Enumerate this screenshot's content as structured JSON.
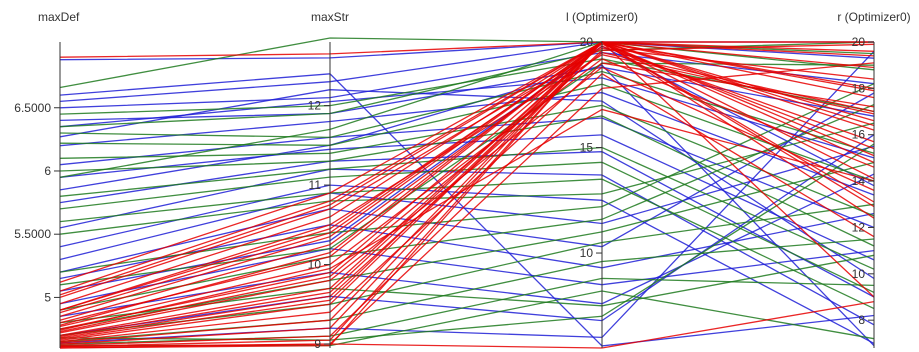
{
  "chart_data": {
    "type": "parallel-coordinates",
    "colors": {
      "blue": "#1f1fd6",
      "green": "#1f7a1f",
      "red": "#e60000"
    },
    "axes": [
      {
        "name": "maxDef",
        "range": [
          4.6,
          7.02
        ],
        "ticks": [
          5,
          5.5,
          6,
          6.5
        ],
        "tick_labels": [
          "5",
          "5.5000",
          "6",
          "6.5000"
        ]
      },
      {
        "name": "maxStr",
        "range": [
          8.95,
          12.8
        ],
        "ticks": [
          9,
          10,
          11,
          12
        ],
        "tick_labels": [
          "9",
          "10",
          "11",
          "12"
        ]
      },
      {
        "name": "l (Optimizer0)",
        "range": [
          5.5,
          20
        ],
        "ticks": [
          10,
          15,
          20
        ],
        "tick_labels": [
          "10",
          "15",
          "20"
        ]
      },
      {
        "name": "r (Optimizer0)",
        "range": [
          6.8,
          20
        ],
        "ticks": [
          8,
          10,
          12,
          14,
          16,
          18,
          20
        ],
        "tick_labels": [
          "8",
          "10",
          "12",
          "14",
          "16",
          "18",
          "20"
        ]
      }
    ],
    "series": [
      {
        "color": "green",
        "values": [
          [
            6.66,
            12.85,
            20,
            19.5
          ],
          [
            6.45,
            12.0,
            19.2,
            17.0
          ],
          [
            6.3,
            11.6,
            18.6,
            15.2
          ],
          [
            6.22,
            11.5,
            18.0,
            14.0
          ],
          [
            6.1,
            11.4,
            17.0,
            12.5
          ],
          [
            6.0,
            11.3,
            16.5,
            11.2
          ],
          [
            5.8,
            11.2,
            15.0,
            10.2
          ],
          [
            5.7,
            11.1,
            14.3,
            9.2
          ],
          [
            5.6,
            10.9,
            13.5,
            8.5
          ],
          [
            5.5,
            10.8,
            12.8,
            16.5
          ],
          [
            5.2,
            10.4,
            12.2,
            18.2
          ],
          [
            4.9,
            10.1,
            11.6,
            17.3
          ],
          [
            4.75,
            9.8,
            11.0,
            14.8
          ],
          [
            4.7,
            9.5,
            10.5,
            13.0
          ],
          [
            4.65,
            9.3,
            9.6,
            11.5
          ],
          [
            4.63,
            9.1,
            8.8,
            9.5
          ],
          [
            4.62,
            8.98,
            8.2,
            7.2
          ],
          [
            6.35,
            11.9,
            19.6,
            20
          ],
          [
            5.95,
            11.7,
            20,
            18.8
          ],
          [
            4.8,
            9.7,
            7.5,
            10.8
          ],
          [
            4.68,
            9.05,
            7.0,
            15.6
          ],
          [
            5.1,
            10.2,
            19.0,
            19.0
          ]
        ]
      },
      {
        "color": "blue",
        "values": [
          [
            6.88,
            12.6,
            20,
            20
          ],
          [
            6.55,
            12.3,
            20,
            19.3
          ],
          [
            6.5,
            12.1,
            19.5,
            18.2
          ],
          [
            6.4,
            11.9,
            18.8,
            16.8
          ],
          [
            6.35,
            12.05,
            18.3,
            15.0
          ],
          [
            6.2,
            11.8,
            17.6,
            13.4
          ],
          [
            6.05,
            11.6,
            16.4,
            12.0
          ],
          [
            5.95,
            11.45,
            15.6,
            10.6
          ],
          [
            5.75,
            11.3,
            14.8,
            9.0
          ],
          [
            5.55,
            11.2,
            13.7,
            7.8
          ],
          [
            5.4,
            11.0,
            12.5,
            7.0
          ],
          [
            5.3,
            10.9,
            11.4,
            15.5
          ],
          [
            5.2,
            10.7,
            10.3,
            17.8
          ],
          [
            5.15,
            10.5,
            9.3,
            12.6
          ],
          [
            4.95,
            10.2,
            8.5,
            11.0
          ],
          [
            4.85,
            9.9,
            7.6,
            14.3
          ],
          [
            4.7,
            9.6,
            6.8,
            16.0
          ],
          [
            4.64,
            9.2,
            6.0,
            19.6
          ],
          [
            6.6,
            12.4,
            5.6,
            8.2
          ],
          [
            5.85,
            11.5,
            18.9,
            6.9
          ],
          [
            6.27,
            12.2,
            17.2,
            9.8
          ],
          [
            5.05,
            10.3,
            19.8,
            13.8
          ]
        ]
      },
      {
        "color": "red",
        "values": [
          [
            6.9,
            12.65,
            20,
            20
          ],
          [
            5.12,
            10.9,
            20,
            19.6
          ],
          [
            5.05,
            10.8,
            20,
            18.9
          ],
          [
            5.0,
            10.7,
            19.7,
            18.4
          ],
          [
            4.95,
            10.6,
            20,
            17.6
          ],
          [
            4.9,
            10.5,
            19.4,
            16.9
          ],
          [
            4.85,
            10.35,
            20,
            16.2
          ],
          [
            4.82,
            10.25,
            19.8,
            15.7
          ],
          [
            4.8,
            10.1,
            20,
            15.1
          ],
          [
            4.77,
            10.0,
            19.2,
            14.6
          ],
          [
            4.75,
            9.9,
            20,
            14.1
          ],
          [
            4.72,
            9.8,
            18.8,
            13.6
          ],
          [
            4.7,
            9.7,
            20,
            13.1
          ],
          [
            4.68,
            9.6,
            19.6,
            19.9
          ],
          [
            4.66,
            9.5,
            20,
            18.0
          ],
          [
            4.65,
            9.4,
            19.0,
            17.2
          ],
          [
            4.64,
            9.3,
            20,
            16.6
          ],
          [
            4.63,
            9.2,
            20,
            12.4
          ],
          [
            4.62,
            9.1,
            18.5,
            11.6
          ],
          [
            4.61,
            9.05,
            20,
            9.0
          ],
          [
            4.61,
            9.0,
            17.8,
            19.1
          ],
          [
            4.6,
            8.98,
            20,
            20
          ],
          [
            4.78,
            10.15,
            20,
            17.9
          ],
          [
            4.9,
            10.45,
            19.9,
            15.4
          ],
          [
            5.02,
            10.75,
            20,
            14.8
          ],
          [
            4.74,
            9.95,
            16.8,
            14.0
          ],
          [
            4.69,
            9.65,
            20,
            16.4
          ],
          [
            4.88,
            10.4,
            20,
            19.4
          ],
          [
            4.67,
            9.55,
            20,
            12.9
          ],
          [
            4.73,
            9.85,
            19.5,
            17.0
          ],
          [
            4.6,
            9.0,
            5.5,
            8.8
          ]
        ]
      }
    ]
  }
}
